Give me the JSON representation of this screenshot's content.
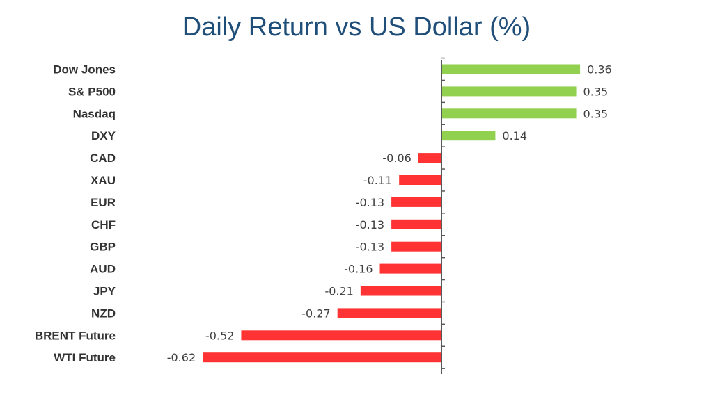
{
  "chart_data": {
    "type": "bar",
    "orientation": "horizontal",
    "title": "Daily Return vs US Dollar (%)",
    "xlabel": "",
    "ylabel": "",
    "categories": [
      "Dow Jones",
      "S& P500",
      "Nasdaq",
      "DXY",
      "CAD",
      "XAU",
      "EUR",
      "CHF",
      "GBP",
      "AUD",
      "JPY",
      "NZD",
      "BRENT Future",
      "WTI Future"
    ],
    "values": [
      0.36,
      0.35,
      0.35,
      0.14,
      -0.06,
      -0.11,
      -0.13,
      -0.13,
      -0.13,
      -0.16,
      -0.21,
      -0.27,
      -0.52,
      -0.62
    ],
    "value_labels": [
      "0.36",
      "0.35",
      "0.35",
      "0.14",
      "-0.06",
      "-0.11",
      "-0.13",
      "-0.13",
      "-0.13",
      "-0.16",
      "-0.21",
      "-0.27",
      "-0.52",
      "-0.62"
    ],
    "xlim": [
      -0.62,
      0.36
    ],
    "grid": false,
    "legend": "none",
    "colors": {
      "positive": "#92d050",
      "negative": "#ff3333",
      "axis": "#595959",
      "title": "#1f4e79"
    }
  }
}
